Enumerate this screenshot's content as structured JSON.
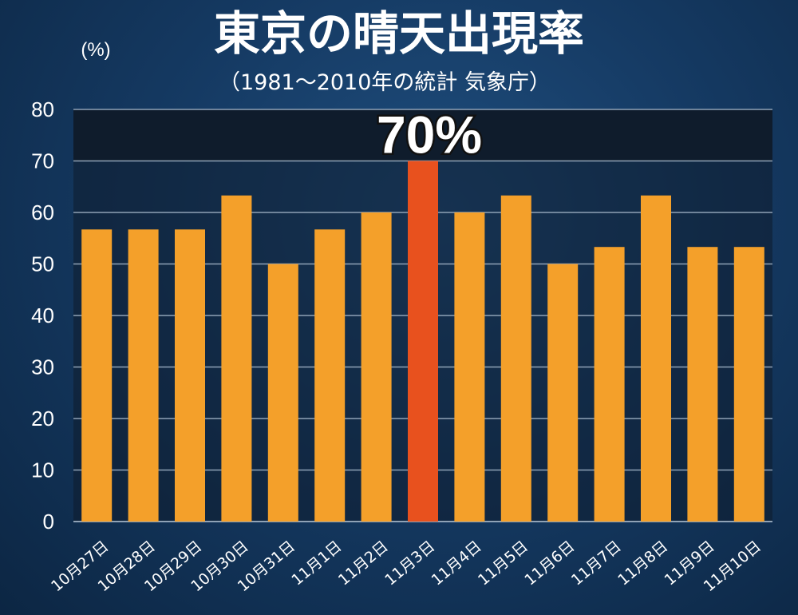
{
  "chart_data": {
    "type": "bar",
    "title": "東京の晴天出現率",
    "subtitle": "（1981〜2010年の統計 気象庁）",
    "ylabel": "(%)",
    "xlabel": "",
    "ylim": [
      0,
      80
    ],
    "yticks": [
      0,
      10,
      20,
      30,
      40,
      50,
      60,
      70,
      80
    ],
    "grid": true,
    "categories": [
      "10月27日",
      "10月28日",
      "10月29日",
      "10月30日",
      "10月31日",
      "11月1日",
      "11月2日",
      "11月3日",
      "11月4日",
      "11月5日",
      "11月6日",
      "11月7日",
      "11月8日",
      "11月9日",
      "11月10日"
    ],
    "values": [
      56.7,
      56.7,
      56.7,
      63.3,
      50.0,
      56.7,
      60.0,
      70.0,
      60.0,
      63.3,
      50.0,
      53.3,
      63.3,
      53.3,
      53.3
    ],
    "highlight": {
      "category": "11月3日",
      "label": "70%",
      "color": "#e8511e"
    },
    "colors": {
      "bar": "#f4a02a",
      "highlight_bar": "#e8511e",
      "plot_background": "#0f1c2c",
      "gridline": "#8fa2b6"
    }
  }
}
